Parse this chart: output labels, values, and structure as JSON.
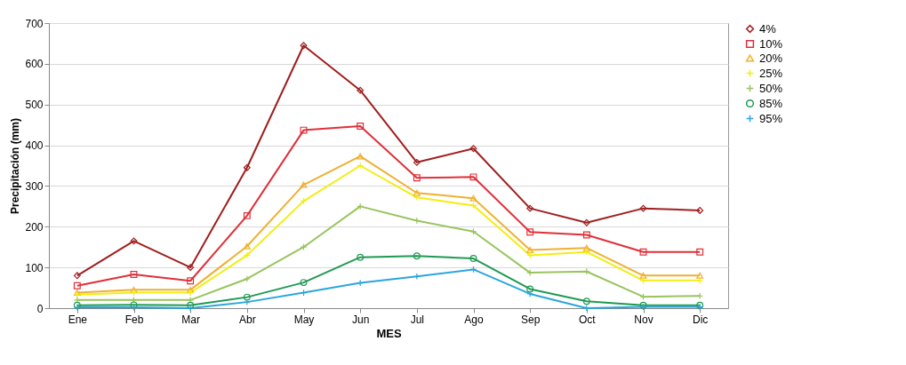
{
  "chart_data": {
    "type": "line",
    "xlabel": "MES",
    "ylabel": "Precipitación (mm)",
    "categories": [
      "Ene",
      "Feb",
      "Mar",
      "Abr",
      "May",
      "Jun",
      "Jul",
      "Ago",
      "Sep",
      "Oct",
      "Nov",
      "Dic"
    ],
    "ylim": [
      0,
      700
    ],
    "yticks": [
      0,
      100,
      200,
      300,
      400,
      500,
      600,
      700
    ],
    "grid": "y",
    "legend": "right",
    "series": [
      {
        "name": "4%",
        "color": "#a01e1e",
        "marker": "diamond",
        "values": [
          80,
          165,
          100,
          345,
          645,
          535,
          358,
          392,
          245,
          210,
          245,
          240
        ]
      },
      {
        "name": "10%",
        "color": "#e0303a",
        "marker": "square",
        "values": [
          55,
          83,
          67,
          227,
          437,
          447,
          320,
          322,
          187,
          180,
          138,
          138
        ]
      },
      {
        "name": "20%",
        "color": "#f0b030",
        "marker": "triangle",
        "values": [
          38,
          45,
          45,
          152,
          303,
          373,
          283,
          270,
          143,
          148,
          80,
          80
        ]
      },
      {
        "name": "25%",
        "color": "#f2ee10",
        "marker": "cross",
        "values": [
          33,
          38,
          38,
          130,
          263,
          350,
          272,
          252,
          130,
          138,
          68,
          68
        ]
      },
      {
        "name": "50%",
        "color": "#99c45e",
        "marker": "cross",
        "values": [
          20,
          20,
          20,
          72,
          150,
          250,
          215,
          188,
          87,
          90,
          28,
          30
        ]
      },
      {
        "name": "85%",
        "color": "#1f9a52",
        "marker": "circle",
        "values": [
          7,
          8,
          7,
          27,
          63,
          125,
          128,
          122,
          47,
          17,
          7,
          7
        ]
      },
      {
        "name": "95%",
        "color": "#2aa6dc",
        "marker": "cross",
        "values": [
          2,
          2,
          0,
          15,
          38,
          62,
          78,
          95,
          35,
          0,
          3,
          3
        ]
      }
    ]
  }
}
